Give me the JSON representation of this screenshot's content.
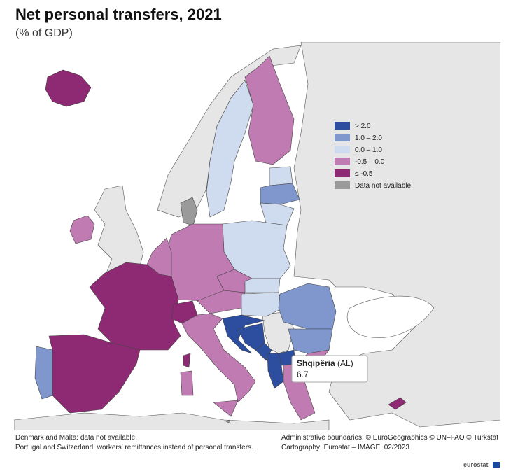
{
  "title": "Net personal transfers, 2021",
  "subtitle": "(% of GDP)",
  "legend": [
    {
      "label": "> 2.0",
      "color": "#2d4e9f"
    },
    {
      "label": "1.0 – 2.0",
      "color": "#7f97cc"
    },
    {
      "label": "0.0 – 1.0",
      "color": "#cfdcef"
    },
    {
      "label": "-0.5 – 0.0",
      "color": "#c07bb2"
    },
    {
      "label": "≤ -0.5",
      "color": "#8d2a73"
    },
    {
      "label": "Data not available",
      "color": "#9a9a9a"
    }
  ],
  "tooltip": {
    "name": "Shqipëria",
    "code": "(AL)",
    "value": 6.7
  },
  "notes": [
    "Denmark and Malta: data not available.",
    "Portugal and Switzerland: workers' remittances instead of personal transfers."
  ],
  "credits": [
    "Administrative boundaries: © EuroGeographics © UN–FAO © Turkstat",
    "Cartography: Eurostat – IMAGE, 02/2023"
  ],
  "logo": "eurostat"
}
